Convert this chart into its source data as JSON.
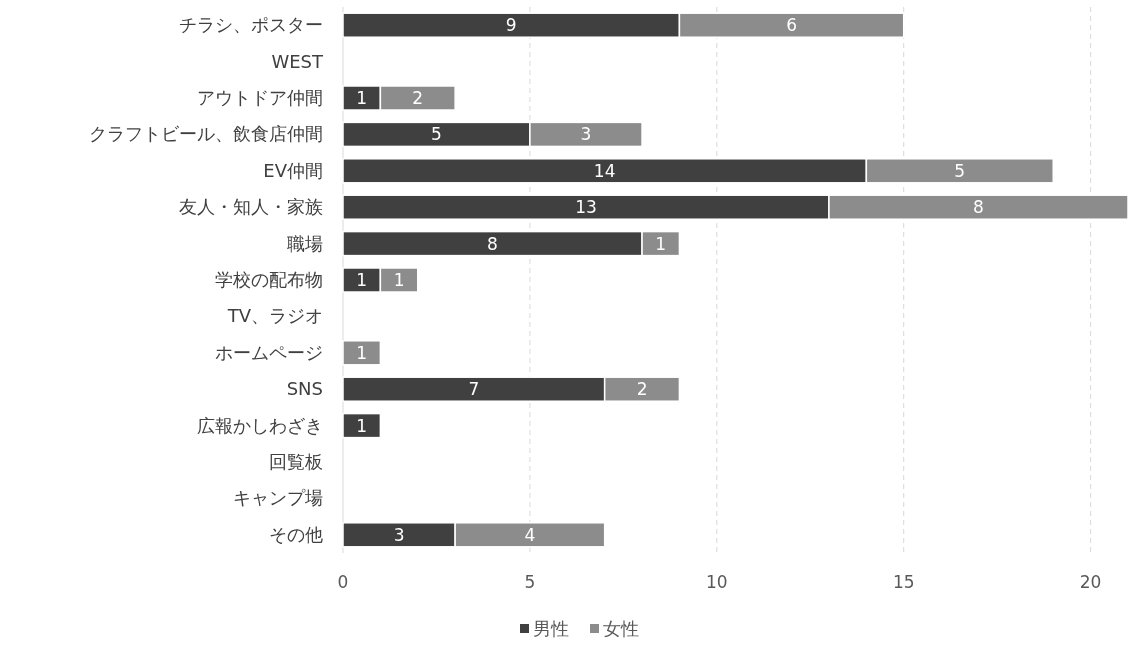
{
  "chart_data": {
    "type": "bar",
    "orientation": "horizontal",
    "stacked": true,
    "categories": [
      "チラシ、ポスター",
      "WEST",
      "アウトドア仲間",
      "クラフトビール、飲食店仲間",
      "EV仲間",
      "友人・知人・家族",
      "職場",
      "学校の配布物",
      "TV、ラジオ",
      "ホームページ",
      "SNS",
      "広報かしわざき",
      "回覧板",
      "キャンプ場",
      "その他"
    ],
    "series": [
      {
        "name": "男性",
        "color": "#404040",
        "values": [
          9,
          null,
          1,
          5,
          14,
          13,
          8,
          1,
          null,
          null,
          7,
          1,
          null,
          null,
          3
        ]
      },
      {
        "name": "女性",
        "color": "#8c8c8c",
        "values": [
          6,
          null,
          2,
          3,
          5,
          8,
          1,
          1,
          null,
          1,
          2,
          null,
          null,
          null,
          4
        ]
      }
    ],
    "xlim": [
      0,
      21
    ],
    "xticks": [
      0,
      5,
      10,
      15,
      20
    ],
    "grid": "x",
    "data_labels": true,
    "legend": "bottom"
  }
}
